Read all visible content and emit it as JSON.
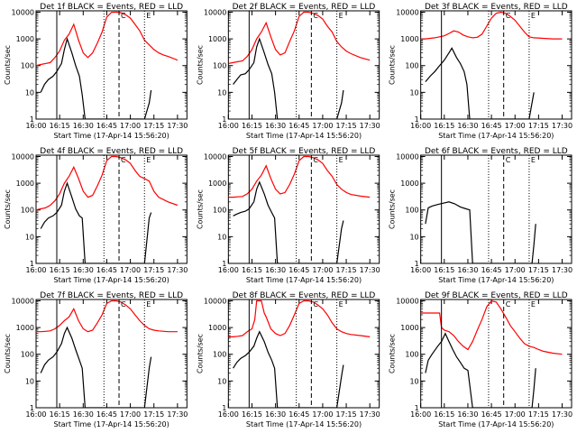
{
  "figure": {
    "y_ticks": [
      "1",
      "10",
      "100",
      "1000",
      "10000"
    ],
    "x_ticks": [
      "16:00",
      "16:15",
      "16:30",
      "16:45",
      "17:00",
      "17:15",
      "17:30"
    ],
    "x_range_hours": [
      16.0,
      17.6
    ],
    "y_log_range": [
      0,
      4.05
    ]
  },
  "markers": {
    "c_label": "C",
    "e_label": "E",
    "line_styles": [
      "solid",
      "dotted",
      "dashed"
    ]
  },
  "chart_data": [
    {
      "type": "line",
      "title": "Det 1f BLACK = Events, RED = LLD",
      "xlabel": "Start Time (17-Apr-14 15:56:20)",
      "ylabel": "Counts/sec",
      "series": [
        {
          "color": "#000000",
          "x": [
            16.05,
            16.09,
            16.13,
            16.18,
            16.22,
            16.27,
            16.3,
            16.33,
            16.38,
            16.42,
            16.46,
            16.49,
            16.52,
            16.58,
            16.65,
            16.72,
            16.8,
            16.88,
            16.95,
            17.05,
            17.15,
            17.2,
            17.22
          ],
          "y": [
            10,
            20,
            30,
            40,
            60,
            120,
            400,
            1000,
            300,
            100,
            40,
            8,
            0,
            0,
            0,
            0,
            0,
            0,
            0,
            0,
            0,
            4,
            12
          ]
        },
        {
          "color": "#ff0000",
          "x": [
            16.0,
            16.05,
            16.1,
            16.15,
            16.2,
            16.25,
            16.3,
            16.35,
            16.4,
            16.45,
            16.5,
            16.55,
            16.6,
            16.65,
            16.7,
            16.75,
            16.8,
            16.85,
            16.9,
            16.95,
            17.0,
            17.05,
            17.1,
            17.15,
            17.2,
            17.25,
            17.3,
            17.35,
            17.4,
            17.45,
            17.5
          ],
          "y": [
            100,
            110,
            120,
            130,
            200,
            350,
            900,
            1500,
            3500,
            900,
            300,
            200,
            300,
            700,
            1800,
            6500,
            9800,
            10000,
            9500,
            8000,
            6000,
            3500,
            2000,
            900,
            600,
            400,
            300,
            250,
            220,
            190,
            160
          ]
        }
      ],
      "markers": [
        16.22,
        16.72,
        16.88,
        17.15
      ]
    },
    {
      "type": "line",
      "title": "Det 2f BLACK = Events, RED = LLD",
      "xlabel": "Start Time (17-Apr-14 15:56:20)",
      "ylabel": "Counts/sec",
      "series": [
        {
          "color": "#000000",
          "x": [
            16.05,
            16.09,
            16.13,
            16.18,
            16.22,
            16.27,
            16.3,
            16.33,
            16.38,
            16.42,
            16.46,
            16.49,
            16.52,
            16.6,
            16.7,
            16.8,
            17.0,
            17.15,
            17.2,
            17.22
          ],
          "y": [
            20,
            30,
            45,
            50,
            70,
            130,
            500,
            1000,
            300,
            110,
            50,
            10,
            0,
            0,
            0,
            0,
            0,
            0,
            4,
            12
          ]
        },
        {
          "color": "#ff0000",
          "x": [
            16.0,
            16.05,
            16.1,
            16.15,
            16.2,
            16.25,
            16.3,
            16.35,
            16.4,
            16.45,
            16.5,
            16.55,
            16.6,
            16.65,
            16.7,
            16.75,
            16.8,
            16.85,
            16.9,
            16.95,
            17.0,
            17.05,
            17.1,
            17.15,
            17.2,
            17.25,
            17.3,
            17.4,
            17.5
          ],
          "y": [
            120,
            130,
            140,
            150,
            220,
            400,
            1000,
            1800,
            4000,
            1200,
            400,
            250,
            300,
            800,
            2000,
            7000,
            10000,
            10000,
            9000,
            7500,
            5500,
            3000,
            1800,
            800,
            500,
            350,
            280,
            200,
            160
          ]
        }
      ],
      "markers": [
        16.22,
        16.72,
        16.88,
        17.15
      ]
    },
    {
      "type": "line",
      "title": "Det 3f BLACK = Events, RED = LLD",
      "xlabel": "Start Time (17-Apr-14 15:56:20)",
      "ylabel": "Counts/sec",
      "series": [
        {
          "color": "#000000",
          "x": [
            16.05,
            16.1,
            16.15,
            16.2,
            16.25,
            16.3,
            16.33,
            16.38,
            16.42,
            16.46,
            16.49,
            16.52,
            16.6,
            16.8,
            17.0,
            17.15,
            17.2
          ],
          "y": [
            25,
            40,
            60,
            100,
            160,
            300,
            450,
            200,
            120,
            60,
            20,
            0,
            0,
            0,
            0,
            0,
            10
          ]
        },
        {
          "color": "#ff0000",
          "x": [
            16.0,
            16.05,
            16.1,
            16.15,
            16.2,
            16.25,
            16.3,
            16.35,
            16.4,
            16.45,
            16.5,
            16.55,
            16.6,
            16.65,
            16.7,
            16.75,
            16.8,
            16.85,
            16.9,
            16.95,
            17.0,
            17.05,
            17.1,
            17.15,
            17.2,
            17.3,
            17.4,
            17.5
          ],
          "y": [
            1000,
            1000,
            1050,
            1100,
            1200,
            1300,
            1600,
            2000,
            1800,
            1400,
            1200,
            1100,
            1150,
            1500,
            3000,
            6000,
            9000,
            10000,
            9000,
            7000,
            5000,
            3000,
            1800,
            1200,
            1100,
            1050,
            1000,
            1000
          ]
        }
      ],
      "markers": [
        16.22,
        16.72,
        16.88,
        17.15
      ]
    },
    {
      "type": "line",
      "title": "Det 4f BLACK = Events, RED = LLD",
      "xlabel": "Start Time (17-Apr-14 15:56:20)",
      "ylabel": "Counts/sec",
      "series": [
        {
          "color": "#000000",
          "x": [
            16.05,
            16.09,
            16.13,
            16.18,
            16.22,
            16.27,
            16.3,
            16.33,
            16.38,
            16.42,
            16.46,
            16.49,
            16.52,
            16.6,
            16.8,
            17.0,
            17.15,
            17.2,
            17.22
          ],
          "y": [
            20,
            35,
            50,
            60,
            80,
            150,
            500,
            1000,
            300,
            110,
            60,
            50,
            0,
            0,
            0,
            0,
            0,
            50,
            80
          ]
        },
        {
          "color": "#ff0000",
          "x": [
            16.0,
            16.05,
            16.1,
            16.15,
            16.2,
            16.25,
            16.3,
            16.35,
            16.4,
            16.45,
            16.5,
            16.55,
            16.6,
            16.65,
            16.7,
            16.75,
            16.8,
            16.85,
            16.9,
            16.95,
            17.0,
            17.05,
            17.1,
            17.15,
            17.2,
            17.25,
            17.3,
            17.4,
            17.5
          ],
          "y": [
            100,
            110,
            120,
            150,
            220,
            400,
            1000,
            1800,
            4000,
            1500,
            500,
            300,
            350,
            800,
            2000,
            7000,
            10000,
            10000,
            9000,
            7500,
            5500,
            3000,
            1800,
            1500,
            1200,
            500,
            300,
            200,
            150
          ]
        }
      ],
      "markers": [
        16.22,
        16.72,
        16.88,
        17.15
      ]
    },
    {
      "type": "line",
      "title": "Det 5f BLACK = Events, RED = LLD",
      "xlabel": "Start Time (17-Apr-14 15:56:20)",
      "ylabel": "Counts/sec",
      "series": [
        {
          "color": "#000000",
          "x": [
            16.05,
            16.09,
            16.13,
            16.18,
            16.22,
            16.27,
            16.3,
            16.33,
            16.38,
            16.42,
            16.46,
            16.49,
            16.52,
            16.6,
            16.8,
            17.0,
            17.15,
            17.2,
            17.22
          ],
          "y": [
            60,
            70,
            80,
            90,
            110,
            200,
            600,
            1100,
            400,
            150,
            80,
            50,
            0,
            0,
            0,
            0,
            0,
            20,
            40
          ]
        },
        {
          "color": "#ff0000",
          "x": [
            16.0,
            16.05,
            16.1,
            16.15,
            16.2,
            16.25,
            16.3,
            16.35,
            16.4,
            16.45,
            16.5,
            16.55,
            16.6,
            16.65,
            16.7,
            16.75,
            16.8,
            16.85,
            16.9,
            16.95,
            17.0,
            17.05,
            17.1,
            17.15,
            17.2,
            17.25,
            17.3,
            17.4,
            17.5
          ],
          "y": [
            300,
            300,
            310,
            320,
            400,
            600,
            1200,
            2000,
            4500,
            1500,
            600,
            400,
            450,
            900,
            2200,
            7000,
            10000,
            10000,
            9000,
            7500,
            5500,
            3000,
            1800,
            900,
            600,
            450,
            380,
            330,
            300
          ]
        }
      ],
      "markers": [
        16.22,
        16.72,
        16.88,
        17.15
      ]
    },
    {
      "type": "line",
      "title": "Det 6f BLACK = Events, RED = LLD",
      "xlabel": "Start Time (17-Apr-14 15:56:20)",
      "ylabel": "Counts/sec",
      "series": [
        {
          "color": "#000000",
          "x": [
            16.05,
            16.08,
            16.12,
            16.18,
            16.24,
            16.3,
            16.36,
            16.42,
            16.48,
            16.52,
            16.55,
            17.18,
            17.2,
            17.22
          ],
          "y": [
            30,
            120,
            140,
            160,
            180,
            200,
            170,
            130,
            110,
            100,
            0,
            0,
            5,
            30
          ]
        }
      ],
      "markers": [
        16.22,
        16.72,
        16.88,
        17.15
      ]
    },
    {
      "type": "line",
      "title": "Det 7f BLACK = Events, RED = LLD",
      "xlabel": "Start Time (17-Apr-14 15:56:20)",
      "ylabel": "Counts/sec",
      "series": [
        {
          "color": "#000000",
          "x": [
            16.05,
            16.09,
            16.13,
            16.18,
            16.22,
            16.27,
            16.3,
            16.33,
            16.38,
            16.42,
            16.46,
            16.49,
            16.52,
            16.6,
            16.8,
            17.0,
            17.15,
            17.2,
            17.22
          ],
          "y": [
            20,
            40,
            60,
            80,
            120,
            250,
            600,
            1000,
            400,
            150,
            60,
            30,
            0,
            0,
            0,
            0,
            0,
            30,
            80
          ]
        },
        {
          "color": "#ff0000",
          "x": [
            16.0,
            16.05,
            16.1,
            16.15,
            16.2,
            16.25,
            16.3,
            16.35,
            16.4,
            16.45,
            16.5,
            16.55,
            16.6,
            16.65,
            16.7,
            16.75,
            16.8,
            16.85,
            16.9,
            16.95,
            17.0,
            17.05,
            17.1,
            17.15,
            17.2,
            17.25,
            17.3,
            17.4,
            17.5
          ],
          "y": [
            700,
            700,
            720,
            750,
            900,
            1200,
            1800,
            2500,
            5000,
            1800,
            900,
            700,
            800,
            1500,
            3000,
            8000,
            10000,
            10000,
            9000,
            7000,
            5000,
            3000,
            1800,
            1200,
            900,
            800,
            750,
            700,
            700
          ]
        }
      ],
      "markers": [
        16.22,
        16.72,
        16.88,
        17.15
      ]
    },
    {
      "type": "line",
      "title": "Det 8f BLACK = Events, RED = LLD",
      "xlabel": "Start Time (17-Apr-14 15:56:20)",
      "ylabel": "Counts/sec",
      "series": [
        {
          "color": "#000000",
          "x": [
            16.05,
            16.09,
            16.13,
            16.18,
            16.22,
            16.27,
            16.3,
            16.33,
            16.38,
            16.42,
            16.46,
            16.49,
            16.52,
            16.6,
            16.8,
            17.0,
            17.15,
            17.2,
            17.22
          ],
          "y": [
            30,
            50,
            70,
            90,
            120,
            200,
            400,
            700,
            300,
            120,
            60,
            30,
            0,
            0,
            0,
            0,
            0,
            15,
            40
          ]
        },
        {
          "color": "#ff0000",
          "x": [
            16.0,
            16.05,
            16.1,
            16.15,
            16.2,
            16.25,
            16.28,
            16.3,
            16.35,
            16.38,
            16.4,
            16.45,
            16.5,
            16.55,
            16.6,
            16.65,
            16.7,
            16.75,
            16.8,
            16.85,
            16.9,
            16.95,
            17.0,
            17.05,
            17.1,
            17.15,
            17.2,
            17.25,
            17.3,
            17.4,
            17.5
          ],
          "y": [
            450,
            450,
            470,
            500,
            700,
            900,
            2000,
            10000,
            10000,
            3500,
            2500,
            900,
            600,
            500,
            600,
            1200,
            3000,
            8000,
            10000,
            10000,
            9000,
            7000,
            5000,
            3000,
            1500,
            900,
            700,
            600,
            550,
            500,
            450
          ]
        }
      ],
      "markers": [
        16.22,
        16.72,
        16.88,
        17.15
      ]
    },
    {
      "type": "line",
      "title": "Det 9f BLACK = Events, RED = LLD",
      "xlabel": "Start Time (17-Apr-14 15:56:20)",
      "ylabel": "Counts/sec",
      "series": [
        {
          "color": "#000000",
          "x": [
            16.05,
            16.08,
            16.12,
            16.18,
            16.22,
            16.26,
            16.3,
            16.34,
            16.38,
            16.42,
            16.46,
            16.5,
            16.55,
            17.18,
            17.2,
            17.22
          ],
          "y": [
            20,
            60,
            100,
            200,
            300,
            600,
            300,
            150,
            80,
            50,
            30,
            25,
            0,
            0,
            5,
            30
          ]
        },
        {
          "color": "#ff0000",
          "x": [
            16.0,
            16.05,
            16.1,
            16.15,
            16.2,
            16.22,
            16.25,
            16.3,
            16.35,
            16.4,
            16.45,
            16.5,
            16.55,
            16.6,
            16.65,
            16.7,
            16.75,
            16.8,
            16.85,
            16.9,
            16.95,
            17.0,
            17.05,
            17.1,
            17.15,
            17.2,
            17.25,
            17.3,
            17.4,
            17.5
          ],
          "y": [
            3500,
            3500,
            3500,
            3500,
            3500,
            1000,
            800,
            700,
            500,
            300,
            200,
            150,
            300,
            800,
            2000,
            6000,
            10000,
            9000,
            5000,
            2500,
            1200,
            700,
            400,
            250,
            200,
            180,
            150,
            130,
            110,
            100
          ]
        }
      ],
      "markers": [
        16.22,
        16.72,
        16.88,
        17.15
      ]
    }
  ]
}
